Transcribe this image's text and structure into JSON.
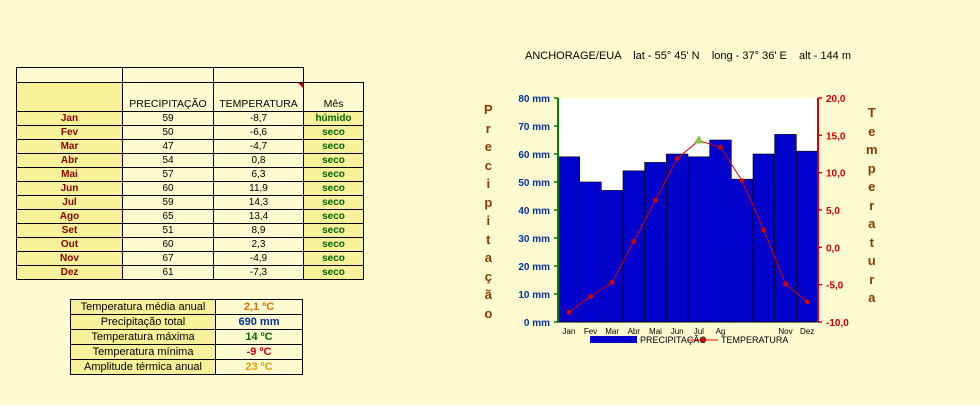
{
  "table": {
    "headers": {
      "precip": "PRECIPITAÇÃO",
      "temp": "TEMPERATURA",
      "status": "Mês"
    },
    "rows": [
      {
        "month": "Jan",
        "precip": "59",
        "temp": "-8,7",
        "status": "húmido"
      },
      {
        "month": "Fev",
        "precip": "50",
        "temp": "-6,6",
        "status": "seco"
      },
      {
        "month": "Mar",
        "precip": "47",
        "temp": "-4,7",
        "status": "seco"
      },
      {
        "month": "Abr",
        "precip": "54",
        "temp": "0,8",
        "status": "seco"
      },
      {
        "month": "Mai",
        "precip": "57",
        "temp": "6,3",
        "status": "seco"
      },
      {
        "month": "Jun",
        "precip": "60",
        "temp": "11,9",
        "status": "seco"
      },
      {
        "month": "Jul",
        "precip": "59",
        "temp": "14,3",
        "status": "seco"
      },
      {
        "month": "Ago",
        "precip": "65",
        "temp": "13,4",
        "status": "seco"
      },
      {
        "month": "Set",
        "precip": "51",
        "temp": "8,9",
        "status": "seco"
      },
      {
        "month": "Out",
        "precip": "60",
        "temp": "2,3",
        "status": "seco"
      },
      {
        "month": "Nov",
        "precip": "67",
        "temp": "-4,9",
        "status": "seco"
      },
      {
        "month": "Dez",
        "precip": "61",
        "temp": "-7,3",
        "status": "seco"
      }
    ]
  },
  "summary": [
    {
      "label": "Temperatura média anual",
      "value": "2,1 ºC",
      "color": "#e07000"
    },
    {
      "label": "Precipitação total",
      "value": "690 mm",
      "color": "#003399"
    },
    {
      "label": "Temperatura máxima",
      "value": "14 ºC",
      "color": "#006400"
    },
    {
      "label": "Temperatura mínima",
      "value": "-9 ºC",
      "color": "#cc0000"
    },
    {
      "label": "Amplitude térmica anual",
      "value": "23 ºC",
      "color": "#e0a000"
    }
  ],
  "chart_data": {
    "type": "bar",
    "title": "ANCHORAGE/EUA    lat - 55° 45' N    long - 37° 36' E    alt - 144 m",
    "categories": [
      "Jan",
      "Fev",
      "Mar",
      "Abr",
      "Mai",
      "Jun",
      "Jul",
      "Ago",
      "Set",
      "Out",
      "Nov",
      "Dez"
    ],
    "series": [
      {
        "name": "PRECIPITAÇÃO",
        "kind": "bar",
        "axis": "left",
        "color": "#0000cc",
        "values": [
          59,
          50,
          47,
          54,
          57,
          60,
          59,
          65,
          51,
          60,
          67,
          61
        ]
      },
      {
        "name": "TEMPERATURA",
        "kind": "line",
        "axis": "right",
        "color": "#cc0000",
        "values": [
          -8.7,
          -6.6,
          -4.7,
          0.8,
          6.3,
          11.9,
          14.3,
          13.4,
          8.9,
          2.3,
          -4.9,
          -7.3
        ]
      }
    ],
    "ylabel": "Precipitação",
    "y2label": "Temperatura",
    "ylim": [
      0,
      80
    ],
    "y2lim": [
      -10,
      20
    ],
    "y_ticks": [
      "0 mm",
      "10 mm",
      "20 mm",
      "30 mm",
      "40 mm",
      "50 mm",
      "60 mm",
      "70 mm",
      "80 mm"
    ],
    "y2_ticks": [
      "-10,0",
      "-5,0",
      "0,0",
      "5,0",
      "10,0",
      "15,0",
      "20,0"
    ],
    "x_tick_labels": [
      "Jan",
      "Fev",
      "Mar",
      "Abr",
      "Mai",
      "Jun",
      "Jul",
      "Ag",
      "",
      "",
      "Nov",
      "Dez"
    ],
    "legend": [
      "PRECIPITAÇÃO",
      "TEMPERATURA"
    ],
    "left_axis_color": "#008000",
    "right_axis_color": "#cc0000",
    "vertical_labels": {
      "left": "Precipitação",
      "right": "Temperatura"
    }
  }
}
